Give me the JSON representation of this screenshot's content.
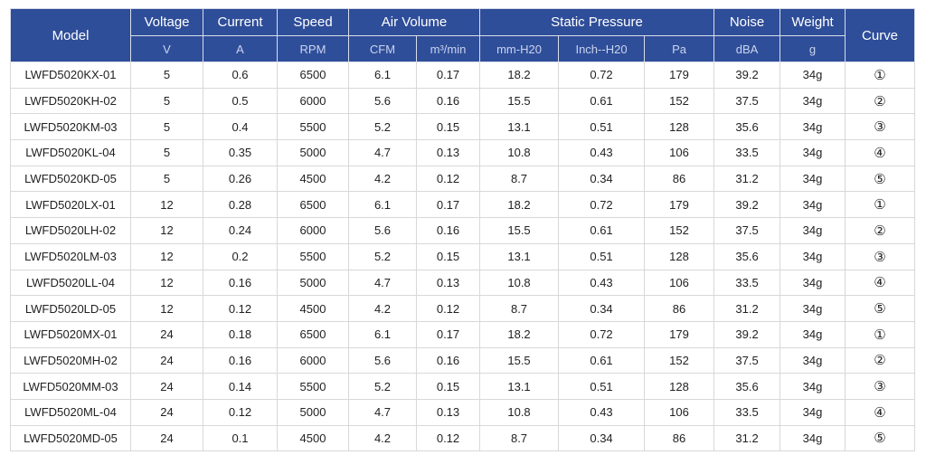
{
  "header": {
    "model": "Model",
    "voltage": "Voltage",
    "current": "Current",
    "speed": "Speed",
    "air_volume": "Air Volume",
    "static_pressure": "Static Pressure",
    "noise": "Noise",
    "weight": "Weight",
    "curve": "Curve"
  },
  "units": {
    "voltage": "V",
    "current": "A",
    "speed": "RPM",
    "cfm": "CFM",
    "m3min": "m³/min",
    "mmh2o": "mm-H20",
    "inchh2o": "Inch--H20",
    "pa": "Pa",
    "dba": "dBA",
    "weight": "g"
  },
  "rows": [
    [
      "LWFD5020KX-01",
      "5",
      "0.6",
      "6500",
      "6.1",
      "0.17",
      "18.2",
      "0.72",
      "179",
      "39.2",
      "34g",
      "①"
    ],
    [
      "LWFD5020KH-02",
      "5",
      "0.5",
      "6000",
      "5.6",
      "0.16",
      "15.5",
      "0.61",
      "152",
      "37.5",
      "34g",
      "②"
    ],
    [
      "LWFD5020KM-03",
      "5",
      "0.4",
      "5500",
      "5.2",
      "0.15",
      "13.1",
      "0.51",
      "128",
      "35.6",
      "34g",
      "③"
    ],
    [
      "LWFD5020KL-04",
      "5",
      "0.35",
      "5000",
      "4.7",
      "0.13",
      "10.8",
      "0.43",
      "106",
      "33.5",
      "34g",
      "④"
    ],
    [
      "LWFD5020KD-05",
      "5",
      "0.26",
      "4500",
      "4.2",
      "0.12",
      "8.7",
      "0.34",
      "86",
      "31.2",
      "34g",
      "⑤"
    ],
    [
      "LWFD5020LX-01",
      "12",
      "0.28",
      "6500",
      "6.1",
      "0.17",
      "18.2",
      "0.72",
      "179",
      "39.2",
      "34g",
      "①"
    ],
    [
      "LWFD5020LH-02",
      "12",
      "0.24",
      "6000",
      "5.6",
      "0.16",
      "15.5",
      "0.61",
      "152",
      "37.5",
      "34g",
      "②"
    ],
    [
      "LWFD5020LM-03",
      "12",
      "0.2",
      "5500",
      "5.2",
      "0.15",
      "13.1",
      "0.51",
      "128",
      "35.6",
      "34g",
      "③"
    ],
    [
      "LWFD5020LL-04",
      "12",
      "0.16",
      "5000",
      "4.7",
      "0.13",
      "10.8",
      "0.43",
      "106",
      "33.5",
      "34g",
      "④"
    ],
    [
      "LWFD5020LD-05",
      "12",
      "0.12",
      "4500",
      "4.2",
      "0.12",
      "8.7",
      "0.34",
      "86",
      "31.2",
      "34g",
      "⑤"
    ],
    [
      "LWFD5020MX-01",
      "24",
      "0.18",
      "6500",
      "6.1",
      "0.17",
      "18.2",
      "0.72",
      "179",
      "39.2",
      "34g",
      "①"
    ],
    [
      "LWFD5020MH-02",
      "24",
      "0.16",
      "6000",
      "5.6",
      "0.16",
      "15.5",
      "0.61",
      "152",
      "37.5",
      "34g",
      "②"
    ],
    [
      "LWFD5020MM-03",
      "24",
      "0.14",
      "5500",
      "5.2",
      "0.15",
      "13.1",
      "0.51",
      "128",
      "35.6",
      "34g",
      "③"
    ],
    [
      "LWFD5020ML-04",
      "24",
      "0.12",
      "5000",
      "4.7",
      "0.13",
      "10.8",
      "0.43",
      "106",
      "33.5",
      "34g",
      "④"
    ],
    [
      "LWFD5020MD-05",
      "24",
      "0.1",
      "4500",
      "4.2",
      "0.12",
      "8.7",
      "0.34",
      "86",
      "31.2",
      "34g",
      "⑤"
    ]
  ],
  "colors": {
    "header_bg": "#2f4e99",
    "header_text": "#ffffff",
    "unit_text": "#c9d4ee",
    "grid": "#d8d8d8"
  }
}
